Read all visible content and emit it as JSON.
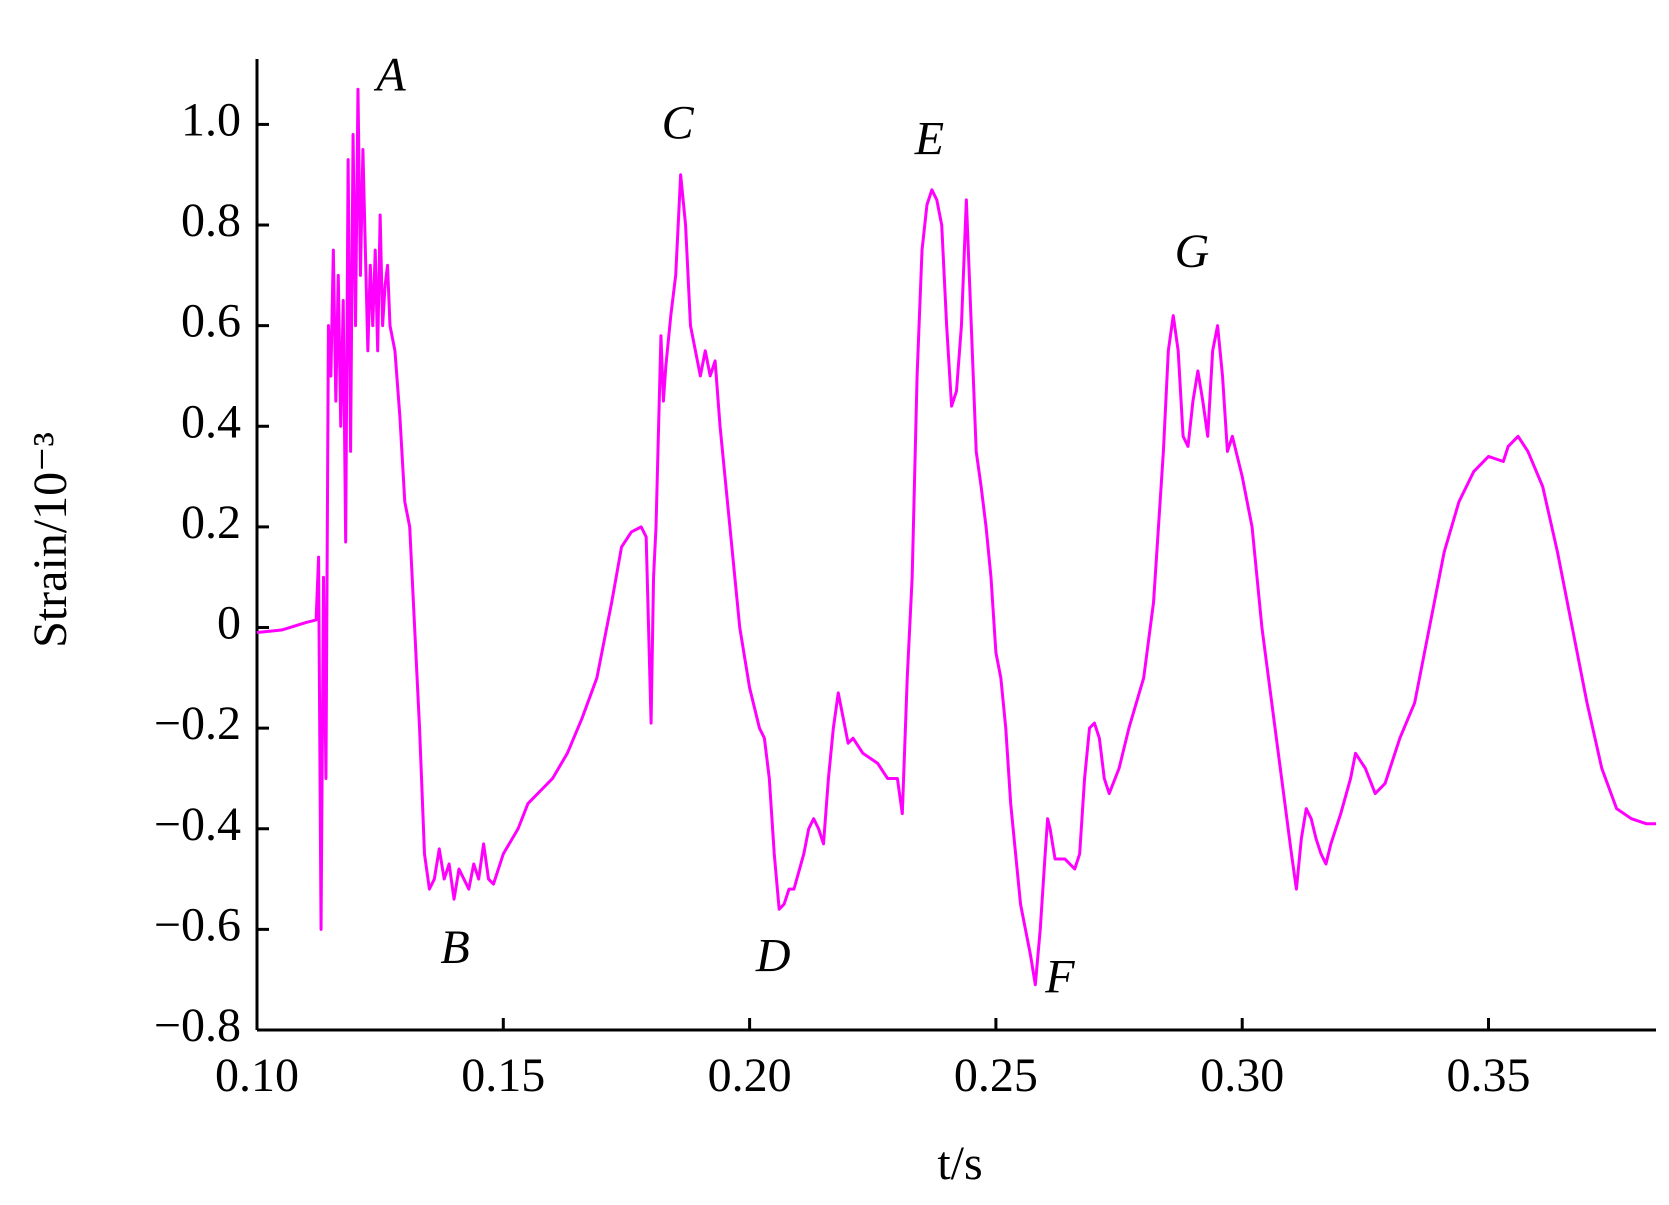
{
  "chart_data": {
    "type": "line",
    "xlabel": "t/s",
    "ylabel": "Strain/10⁻³",
    "color": "#ff00ff",
    "xlim": [
      0.1,
      0.384
    ],
    "ylim": [
      -0.8,
      1.13
    ],
    "xticks": [
      {
        "value": 0.1,
        "label": "0.10"
      },
      {
        "value": 0.15,
        "label": "0.15"
      },
      {
        "value": 0.2,
        "label": "0.20"
      },
      {
        "value": 0.25,
        "label": "0.25"
      },
      {
        "value": 0.3,
        "label": "0.30"
      },
      {
        "value": 0.35,
        "label": "0.35"
      }
    ],
    "yticks": [
      {
        "value": -0.8,
        "label": "−0.8"
      },
      {
        "value": -0.6,
        "label": "−0.6"
      },
      {
        "value": -0.4,
        "label": "−0.4"
      },
      {
        "value": -0.2,
        "label": "−0.2"
      },
      0,
      0.2,
      0.4,
      0.6,
      0.8,
      {
        "value": 1.0,
        "label": "1.0"
      }
    ],
    "annotations": [
      {
        "text": "A",
        "x": 0.1272,
        "y": 1.089
      },
      {
        "text": "B",
        "x": 0.1402,
        "y": -0.645
      },
      {
        "text": "C",
        "x": 0.1854,
        "y": 0.994
      },
      {
        "text": "D",
        "x": 0.2048,
        "y": -0.662
      },
      {
        "text": "E",
        "x": 0.2365,
        "y": 0.962
      },
      {
        "text": "F",
        "x": 0.263,
        "y": -0.704
      },
      {
        "text": "G",
        "x": 0.2898,
        "y": 0.738
      }
    ],
    "x": [
      0.1,
      0.105,
      0.11,
      0.112,
      0.1125,
      0.113,
      0.1135,
      0.114,
      0.1145,
      0.115,
      0.1155,
      0.116,
      0.1165,
      0.117,
      0.1175,
      0.118,
      0.1185,
      0.119,
      0.1195,
      0.12,
      0.1205,
      0.121,
      0.1215,
      0.122,
      0.1225,
      0.123,
      0.1235,
      0.124,
      0.1245,
      0.125,
      0.1255,
      0.126,
      0.1265,
      0.127,
      0.128,
      0.129,
      0.13,
      0.131,
      0.132,
      0.133,
      0.134,
      0.135,
      0.136,
      0.137,
      0.138,
      0.139,
      0.14,
      0.141,
      0.142,
      0.143,
      0.144,
      0.145,
      0.146,
      0.147,
      0.148,
      0.15,
      0.153,
      0.155,
      0.158,
      0.16,
      0.163,
      0.166,
      0.169,
      0.172,
      0.174,
      0.176,
      0.178,
      0.179,
      0.18,
      0.1805,
      0.181,
      0.182,
      0.1825,
      0.183,
      0.184,
      0.185,
      0.186,
      0.187,
      0.188,
      0.189,
      0.19,
      0.191,
      0.192,
      0.193,
      0.194,
      0.196,
      0.198,
      0.2,
      0.202,
      0.203,
      0.204,
      0.205,
      0.206,
      0.207,
      0.208,
      0.209,
      0.211,
      0.212,
      0.213,
      0.214,
      0.215,
      0.216,
      0.217,
      0.218,
      0.219,
      0.22,
      0.221,
      0.223,
      0.226,
      0.228,
      0.23,
      0.231,
      0.232,
      0.233,
      0.234,
      0.235,
      0.236,
      0.237,
      0.238,
      0.239,
      0.24,
      0.241,
      0.242,
      0.243,
      0.244,
      0.245,
      0.246,
      0.247,
      0.248,
      0.249,
      0.25,
      0.251,
      0.252,
      0.253,
      0.254,
      0.255,
      0.256,
      0.257,
      0.258,
      0.259,
      0.26,
      0.2605,
      0.261,
      0.262,
      0.264,
      0.266,
      0.267,
      0.268,
      0.269,
      0.27,
      0.271,
      0.272,
      0.273,
      0.275,
      0.277,
      0.28,
      0.282,
      0.284,
      0.285,
      0.286,
      0.287,
      0.288,
      0.289,
      0.29,
      0.291,
      0.292,
      0.293,
      0.294,
      0.295,
      0.296,
      0.297,
      0.298,
      0.3,
      0.302,
      0.304,
      0.306,
      0.308,
      0.31,
      0.311,
      0.312,
      0.313,
      0.314,
      0.315,
      0.316,
      0.317,
      0.318,
      0.32,
      0.322,
      0.323,
      0.325,
      0.327,
      0.329,
      0.332,
      0.335,
      0.338,
      0.341,
      0.344,
      0.347,
      0.35,
      0.353,
      0.354,
      0.356,
      0.358,
      0.361,
      0.364,
      0.367,
      0.37,
      0.373,
      0.376,
      0.379,
      0.382,
      0.384
    ],
    "values": [
      -0.01,
      -0.005,
      0.01,
      0.015,
      0.14,
      -0.6,
      0.1,
      -0.3,
      0.6,
      0.5,
      0.75,
      0.45,
      0.7,
      0.4,
      0.65,
      0.17,
      0.93,
      0.35,
      0.98,
      0.6,
      1.07,
      0.7,
      0.95,
      0.75,
      0.55,
      0.72,
      0.6,
      0.75,
      0.55,
      0.82,
      0.6,
      0.68,
      0.72,
      0.6,
      0.55,
      0.42,
      0.25,
      0.2,
      0.0,
      -0.2,
      -0.45,
      -0.52,
      -0.5,
      -0.44,
      -0.5,
      -0.47,
      -0.54,
      -0.48,
      -0.5,
      -0.52,
      -0.47,
      -0.5,
      -0.43,
      -0.5,
      -0.51,
      -0.45,
      -0.4,
      -0.35,
      -0.32,
      -0.3,
      -0.25,
      -0.18,
      -0.1,
      0.05,
      0.16,
      0.19,
      0.2,
      0.18,
      -0.19,
      0.1,
      0.2,
      0.58,
      0.45,
      0.52,
      0.62,
      0.7,
      0.9,
      0.8,
      0.6,
      0.55,
      0.5,
      0.55,
      0.5,
      0.53,
      0.4,
      0.2,
      0.0,
      -0.12,
      -0.2,
      -0.22,
      -0.3,
      -0.45,
      -0.56,
      -0.55,
      -0.52,
      -0.52,
      -0.45,
      -0.4,
      -0.38,
      -0.4,
      -0.43,
      -0.3,
      -0.2,
      -0.13,
      -0.18,
      -0.23,
      -0.22,
      -0.25,
      -0.27,
      -0.3,
      -0.3,
      -0.37,
      -0.1,
      0.1,
      0.5,
      0.75,
      0.84,
      0.87,
      0.85,
      0.8,
      0.6,
      0.44,
      0.47,
      0.6,
      0.85,
      0.6,
      0.35,
      0.28,
      0.2,
      0.1,
      -0.05,
      -0.1,
      -0.2,
      -0.35,
      -0.45,
      -0.55,
      -0.6,
      -0.65,
      -0.71,
      -0.6,
      -0.45,
      -0.38,
      -0.4,
      -0.46,
      -0.46,
      -0.48,
      -0.45,
      -0.3,
      -0.2,
      -0.19,
      -0.22,
      -0.3,
      -0.33,
      -0.28,
      -0.2,
      -0.1,
      0.05,
      0.35,
      0.55,
      0.62,
      0.55,
      0.38,
      0.36,
      0.45,
      0.51,
      0.45,
      0.38,
      0.55,
      0.6,
      0.5,
      0.35,
      0.38,
      0.3,
      0.2,
      0.0,
      -0.15,
      -0.3,
      -0.45,
      -0.52,
      -0.42,
      -0.36,
      -0.38,
      -0.42,
      -0.45,
      -0.47,
      -0.43,
      -0.37,
      -0.3,
      -0.25,
      -0.28,
      -0.33,
      -0.31,
      -0.22,
      -0.15,
      0.0,
      0.15,
      0.25,
      0.31,
      0.34,
      0.33,
      0.36,
      0.38,
      0.35,
      0.28,
      0.15,
      0.0,
      -0.15,
      -0.28,
      -0.36,
      -0.38,
      -0.39,
      -0.39
    ]
  }
}
